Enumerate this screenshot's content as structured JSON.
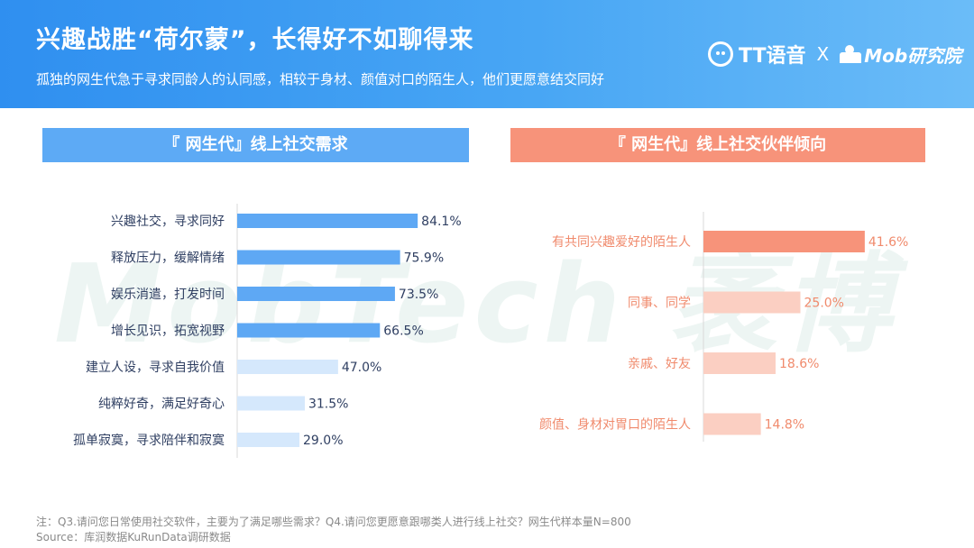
{
  "header": {
    "title": "兴趣战胜“荷尔蒙”，长得好不如聊得来",
    "subtitle": "孤独的网生代急于寻求同龄人的认同感，相较于身材、颜值对口的陌生人，他们更愿意结交同好",
    "logo_tt": "TT语音",
    "logo_cross": "X",
    "logo_mob": "Mob研究院"
  },
  "watermark": "MobTech 袤博",
  "colors": {
    "left_strong": "#5ea8f4",
    "left_light": "#d5e8fc",
    "right_strong": "#f7937a",
    "right_light": "#fbcfc2",
    "left_label": "#2f3f62",
    "right_label": "#f08a6c"
  },
  "chart_data": [
    {
      "type": "bar",
      "orientation": "horizontal",
      "title": "『 网生代』线上社交需求",
      "categories": [
        "兴趣社交，寻求同好",
        "释放压力，缓解情绪",
        "娱乐消遣，打发时间",
        "增长见识，拓宽视野",
        "建立人设，寻求自我价值",
        "纯粹好奇，满足好奇心",
        "孤单寂寞，寻求陪伴和寂寞"
      ],
      "values": [
        84.1,
        75.9,
        73.5,
        66.5,
        47.0,
        31.5,
        29.0
      ],
      "value_labels": [
        "84.1%",
        "75.9%",
        "73.5%",
        "66.5%",
        "47.0%",
        "31.5%",
        "29.0%"
      ],
      "highlight_count": 4,
      "xlim": [
        0,
        100
      ]
    },
    {
      "type": "bar",
      "orientation": "horizontal",
      "title": "『 网生代』线上社交伙伴倾向",
      "categories": [
        "有共同兴趣爱好的陌生人",
        "同事、同学",
        "亲戚、好友",
        "颜值、身材对胃口的陌生人"
      ],
      "values": [
        41.6,
        25.0,
        18.6,
        14.8
      ],
      "value_labels": [
        "41.6%",
        "25.0%",
        "18.6%",
        "14.8%"
      ],
      "highlight_count": 1,
      "xlim": [
        0,
        100
      ]
    }
  ],
  "footnote": {
    "note": "注：Q3.请问您日常使用社交软件，主要为了满足哪些需求？Q4.请问您更愿意跟哪类人进行线上社交？网生代样本量N=800",
    "source": "Source：库润数据KuRunData调研数据"
  }
}
